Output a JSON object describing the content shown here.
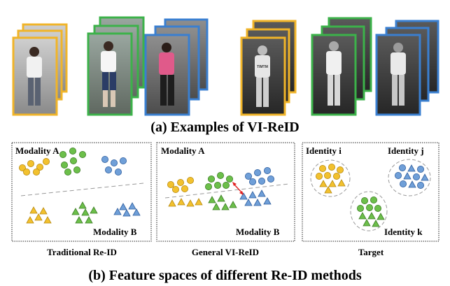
{
  "caption_a": "(a) Examples of VI-ReID",
  "caption_b": "(b) Feature spaces of different Re-ID methods",
  "panels": [
    {
      "title": "Traditional Re-ID",
      "labels": {
        "modality_a": "Modality A",
        "modality_b": "Modality B"
      }
    },
    {
      "title": "General VI-ReID",
      "labels": {
        "modality_a": "Modality A",
        "modality_b": "Modality B"
      }
    },
    {
      "title": "Target",
      "labels": {
        "identity_i": "Identity i",
        "identity_j": "Identity j",
        "identity_k": "Identity k"
      }
    }
  ],
  "shirt_text": "TIMTM",
  "colors": {
    "yellow": "#f2c12e",
    "green": "#6cbf4a",
    "blue": "#6f9fd8",
    "frame_orange": "#f0b429",
    "frame_green": "#3cb24a",
    "frame_blue": "#3a7fd0",
    "arrow_red": "#e02020"
  }
}
